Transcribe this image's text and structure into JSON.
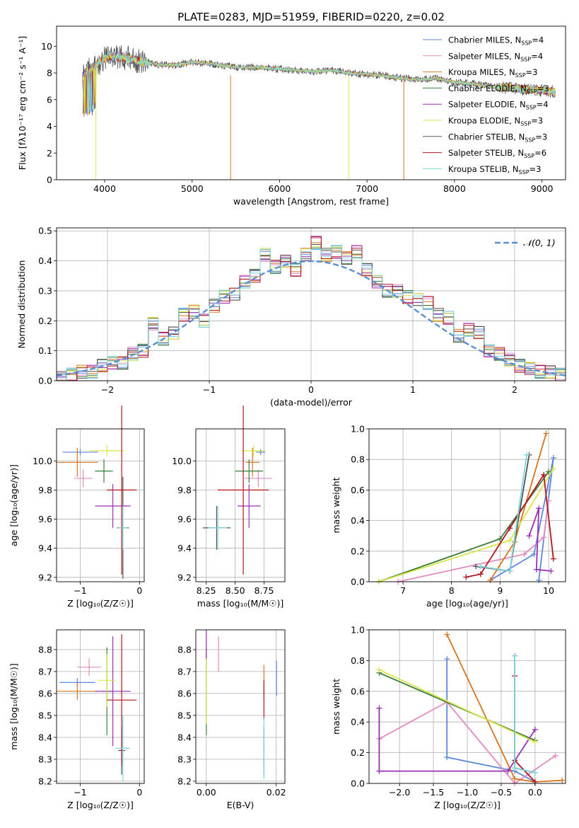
{
  "figure": {
    "title": "PLATE=0283, MJD=51959, FIBERID=0220, z=0.02"
  },
  "series": [
    {
      "name": "Chabrier MILES",
      "nssp": "4",
      "color": "#5b87dc"
    },
    {
      "name": "Salpeter MILES",
      "nssp": "4",
      "color": "#e58ac0"
    },
    {
      "name": "Kroupa MILES",
      "nssp": "3",
      "color": "#d9741c"
    },
    {
      "name": "Chabrier ELODIE",
      "nssp": "3",
      "color": "#3a7d3a"
    },
    {
      "name": "Salpeter ELODIE",
      "nssp": "4",
      "color": "#9b2fb5"
    },
    {
      "name": "Kroupa ELODIE",
      "nssp": "3",
      "color": "#d8e64a"
    },
    {
      "name": "Chabrier STELIB",
      "nssp": "3",
      "color": "#555555"
    },
    {
      "name": "Salpeter STELIB",
      "nssp": "6",
      "color": "#b0161d"
    },
    {
      "name": "Kroupa STELIB",
      "nssp": "3",
      "color": "#7fd6de"
    }
  ],
  "chart_data": [
    {
      "id": "spectrum",
      "type": "line",
      "xlabel": "wavelength [Angstrom, rest frame]",
      "ylabel": "Flux [fλ10⁻¹⁷ erg cm⁻² s⁻¹ A⁻¹]",
      "xlim": [
        3450,
        9270
      ],
      "ylim": [
        0,
        11.5
      ],
      "xticks": [
        "4000",
        "5000",
        "6000",
        "7000",
        "8000",
        "9000"
      ],
      "yticks": [
        "0",
        "2",
        "4",
        "6",
        "8",
        "10"
      ],
      "grid": false,
      "legend": "top-right",
      "x": [
        3750,
        3900,
        4050,
        4200,
        4400,
        4600,
        4800,
        5000,
        5200,
        5400,
        5600,
        5800,
        6000,
        6200,
        6400,
        6600,
        6800,
        7000,
        7200,
        7400,
        7600,
        7800,
        8000,
        8200,
        8400,
        8600,
        8800,
        9000,
        9150
      ],
      "y": [
        7.8,
        8.6,
        9.3,
        9.2,
        8.9,
        8.6,
        8.6,
        8.8,
        8.7,
        8.5,
        8.4,
        8.4,
        8.3,
        8.2,
        8.1,
        8.2,
        8.0,
        7.9,
        7.8,
        7.6,
        7.5,
        7.6,
        7.3,
        7.2,
        7.0,
        6.9,
        6.8,
        6.7,
        6.6
      ]
    },
    {
      "id": "residuals",
      "type": "line",
      "xlabel": "(data-model)/error",
      "ylabel": "Normed distribution",
      "xlim": [
        -2.5,
        2.5
      ],
      "ylim": [
        0,
        0.51
      ],
      "xticks": [
        "−2",
        "−1",
        "0",
        "1",
        "2"
      ],
      "yticks": [
        "0.0",
        "0.1",
        "0.2",
        "0.3",
        "0.4",
        "0.5"
      ],
      "grid": true,
      "legend": "top-right",
      "reference_label": "𝒩(0, 1)",
      "bins": [
        -2.5,
        -2.4,
        -2.3,
        -2.2,
        -2.1,
        -2.0,
        -1.9,
        -1.8,
        -1.7,
        -1.6,
        -1.5,
        -1.4,
        -1.3,
        -1.2,
        -1.1,
        -1.0,
        -0.9,
        -0.8,
        -0.7,
        -0.6,
        -0.5,
        -0.4,
        -0.3,
        -0.2,
        -0.1,
        0.0,
        0.1,
        0.2,
        0.3,
        0.4,
        0.5,
        0.6,
        0.7,
        0.8,
        0.9,
        1.0,
        1.1,
        1.2,
        1.3,
        1.4,
        1.5,
        1.6,
        1.7,
        1.8,
        1.9,
        2.0,
        2.1,
        2.2,
        2.3,
        2.4
      ],
      "hist_values": [
        0.01,
        0.02,
        0.03,
        0.03,
        0.05,
        0.06,
        0.06,
        0.09,
        0.1,
        0.19,
        0.14,
        0.16,
        0.22,
        0.23,
        0.2,
        0.25,
        0.28,
        0.29,
        0.33,
        0.35,
        0.42,
        0.38,
        0.4,
        0.37,
        0.42,
        0.46,
        0.42,
        0.43,
        0.41,
        0.43,
        0.37,
        0.33,
        0.3,
        0.3,
        0.28,
        0.27,
        0.26,
        0.22,
        0.21,
        0.15,
        0.17,
        0.16,
        0.1,
        0.09,
        0.07,
        0.05,
        0.04,
        0.03,
        0.03,
        0.02
      ]
    },
    {
      "id": "age_vs_Z",
      "type": "scatter",
      "xlabel": "Z [log₁₀(Z/Z☉)]",
      "ylabel": "age  [log₁₀(age/yr)]",
      "xlim": [
        -1.4,
        0.08
      ],
      "ylim": [
        9.17,
        10.22
      ],
      "xticks": [
        "−1",
        "0"
      ],
      "yticks": [
        "9.2",
        "9.4",
        "9.6",
        "9.8",
        "10.0"
      ],
      "grid": true,
      "points": [
        {
          "x": -1.0,
          "y": 10.06,
          "xerr": 0.3,
          "yerr": 0.02
        },
        {
          "x": -0.95,
          "y": 9.88,
          "xerr": 0.15,
          "yerr": 0.06
        },
        {
          "x": -1.05,
          "y": 9.99,
          "xerr": 0.35,
          "yerr": 0.1
        },
        {
          "x": -0.6,
          "y": 9.93,
          "xerr": 0.15,
          "yerr": 0.08
        },
        {
          "x": -0.45,
          "y": 9.69,
          "xerr": 0.3,
          "yerr": 0.15
        },
        {
          "x": -0.55,
          "y": 10.07,
          "xerr": 0.3,
          "yerr": 0.04
        },
        {
          "x": -0.28,
          "y": 9.54,
          "xerr": 0.1,
          "yerr": 0.35
        },
        {
          "x": -0.3,
          "y": 9.8,
          "xerr": 0.25,
          "yerr": 0.58
        },
        {
          "x": -0.28,
          "y": 9.54,
          "xerr": 0.08,
          "yerr": 0.15
        }
      ]
    },
    {
      "id": "age_vs_mass",
      "type": "scatter",
      "xlabel": "mass [log₁₀(M/M☉)]",
      "ylabel": "",
      "xlim": [
        8.16,
        8.93
      ],
      "ylim": [
        9.17,
        10.22
      ],
      "xticks": [
        "8.25",
        "8.50",
        "8.75"
      ],
      "yticks": [
        "9.2",
        "9.4",
        "9.6",
        "9.8",
        "10.0"
      ],
      "grid": true,
      "points": [
        {
          "x": 8.72,
          "y": 10.06,
          "xerr": 0.04,
          "yerr": 0.02
        },
        {
          "x": 8.7,
          "y": 9.88,
          "xerr": 0.12,
          "yerr": 0.06
        },
        {
          "x": 8.65,
          "y": 9.99,
          "xerr": 0.06,
          "yerr": 0.1
        },
        {
          "x": 8.62,
          "y": 9.93,
          "xerr": 0.12,
          "yerr": 0.08
        },
        {
          "x": 8.62,
          "y": 9.69,
          "xerr": 0.1,
          "yerr": 0.15
        },
        {
          "x": 8.66,
          "y": 10.07,
          "xerr": 0.1,
          "yerr": 0.04
        },
        {
          "x": 8.34,
          "y": 9.54,
          "xerr": 0.12,
          "yerr": 0.15
        },
        {
          "x": 8.57,
          "y": 9.8,
          "xerr": 0.22,
          "yerr": 0.58
        },
        {
          "x": 8.35,
          "y": 9.54,
          "xerr": 0.08,
          "yerr": 0.15
        }
      ]
    },
    {
      "id": "weight_vs_age",
      "type": "line",
      "xlabel": "age  [log₁₀(age/yr)]",
      "ylabel": "mass weight",
      "xlim": [
        6.3,
        10.35
      ],
      "ylim": [
        0,
        1.0
      ],
      "xticks": [
        "7",
        "8",
        "9",
        "10"
      ],
      "yticks": [
        "0.0",
        "0.2",
        "0.4",
        "0.6",
        "0.8",
        "1.0"
      ],
      "grid": true,
      "lines": [
        {
          "x": [
            8.8,
            9.7,
            10.1,
            9.8
          ],
          "y": [
            0.01,
            0.18,
            0.81,
            0.01
          ]
        },
        {
          "x": [
            6.9,
            9.5,
            9.9,
            10.0
          ],
          "y": [
            0.0,
            0.18,
            0.29,
            0.53
          ]
        },
        {
          "x": [
            8.8,
            9.3,
            9.95
          ],
          "y": [
            0.01,
            0.26,
            0.97
          ]
        },
        {
          "x": [
            6.5,
            9.0,
            10.0
          ],
          "y": [
            0.0,
            0.28,
            0.72
          ]
        },
        {
          "x": [
            9.6,
            9.8,
            9.75,
            10.05
          ],
          "y": [
            0.3,
            0.48,
            0.08,
            0.07
          ]
        },
        {
          "x": [
            6.5,
            9.2,
            10.1
          ],
          "y": [
            0.0,
            0.27,
            0.74
          ]
        },
        {
          "x": [
            8.5,
            9.2,
            9.6
          ],
          "y": [
            0.1,
            0.07,
            0.83
          ]
        },
        {
          "x": [
            8.3,
            8.6,
            9.2,
            9.9,
            10.1
          ],
          "y": [
            0.03,
            0.05,
            0.35,
            0.7,
            0.15
          ]
        },
        {
          "x": [
            8.6,
            9.2,
            9.55
          ],
          "y": [
            0.1,
            0.07,
            0.83
          ]
        }
      ]
    },
    {
      "id": "mass_vs_Z",
      "type": "scatter",
      "xlabel": "Z [log₁₀(Z/Z☉)]",
      "ylabel": "mass [log₁₀(M/M☉)]",
      "xlim": [
        -1.4,
        0.08
      ],
      "ylim": [
        8.19,
        8.89
      ],
      "xticks": [
        "−1",
        "0"
      ],
      "yticks": [
        "8.2",
        "8.3",
        "8.4",
        "8.5",
        "8.6",
        "8.7",
        "8.8"
      ],
      "grid": true,
      "points": [
        {
          "x": -1.05,
          "y": 8.65,
          "xerr": 0.3,
          "yerr": 0.02
        },
        {
          "x": -0.85,
          "y": 8.72,
          "xerr": 0.2,
          "yerr": 0.04
        },
        {
          "x": -1.05,
          "y": 8.61,
          "xerr": 0.35,
          "yerr": 0.04
        },
        {
          "x": -0.55,
          "y": 8.61,
          "xerr": 0.1,
          "yerr": 0.2
        },
        {
          "x": -0.45,
          "y": 8.61,
          "xerr": 0.3,
          "yerr": 0.25
        },
        {
          "x": -0.55,
          "y": 8.66,
          "xerr": 0.15,
          "yerr": 0.12
        },
        {
          "x": -0.3,
          "y": 8.34,
          "xerr": 0.06,
          "yerr": 0.11
        },
        {
          "x": -0.3,
          "y": 8.57,
          "xerr": 0.25,
          "yerr": 0.3
        },
        {
          "x": -0.28,
          "y": 8.35,
          "xerr": 0.12,
          "yerr": 0.15
        }
      ]
    },
    {
      "id": "mass_vs_ebv",
      "type": "scatter",
      "xlabel": "E(B-V)",
      "ylabel": "",
      "xlim": [
        -0.003,
        0.0225
      ],
      "ylim": [
        8.19,
        8.89
      ],
      "xticks": [
        "0.00",
        "0.02"
      ],
      "yticks": [
        "8.2",
        "8.3",
        "8.4",
        "8.5",
        "8.6",
        "8.7",
        "8.8"
      ],
      "grid": true,
      "points": [
        {
          "x": 0.0201,
          "y": 8.67,
          "xerr": 0,
          "yerr": 0.08
        },
        {
          "x": 0.0035,
          "y": 8.78,
          "xerr": 0,
          "yerr": 0.08
        },
        {
          "x": 0.0165,
          "y": 8.65,
          "xerr": 0,
          "yerr": 0.08
        },
        {
          "x": 0.0,
          "y": 8.61,
          "xerr": 0,
          "yerr": 0.2
        },
        {
          "x": 0.0,
          "y": 8.82,
          "xerr": 0,
          "yerr": 0.07
        },
        {
          "x": 0.0,
          "y": 8.61,
          "xerr": 0,
          "yerr": 0.15
        },
        {
          "x": 0.0165,
          "y": 8.34,
          "xerr": 0,
          "yerr": 0.11
        },
        {
          "x": 0.0165,
          "y": 8.57,
          "xerr": 0,
          "yerr": 0.09
        },
        {
          "x": 0.0165,
          "y": 8.35,
          "xerr": 0,
          "yerr": 0.14
        }
      ]
    },
    {
      "id": "weight_vs_Z",
      "type": "line",
      "xlabel": "Z [log₁₀(Z/Z☉)]",
      "ylabel": "mass weight",
      "xlim": [
        -2.45,
        0.45
      ],
      "ylim": [
        0,
        1.0
      ],
      "xticks": [
        "−2.0",
        "−1.5",
        "−1.0",
        "−0.5",
        "0.0"
      ],
      "yticks": [
        "0.0",
        "0.2",
        "0.4",
        "0.6",
        "0.8",
        "1.0"
      ],
      "grid": true,
      "lines": [
        {
          "x": [
            -1.3,
            -1.3,
            -0.3,
            0.0
          ],
          "y": [
            0.81,
            0.17,
            0.08,
            0.01
          ]
        },
        {
          "x": [
            -2.3,
            -1.3,
            -0.3,
            0.3
          ],
          "y": [
            0.29,
            0.53,
            0.0,
            0.18
          ]
        },
        {
          "x": [
            -1.3,
            -0.3,
            0.0,
            0.4
          ],
          "y": [
            0.97,
            0.03,
            0.01,
            0.02
          ]
        },
        {
          "x": [
            -2.3,
            0.0
          ],
          "y": [
            0.72,
            0.28
          ]
        },
        {
          "x": [
            -2.3,
            -2.3,
            -0.4,
            0.0
          ],
          "y": [
            0.49,
            0.08,
            0.08,
            0.35
          ]
        },
        {
          "x": [
            -2.3,
            0.0
          ],
          "y": [
            0.74,
            0.27
          ]
        },
        {
          "x": [
            -0.3,
            -0.3,
            0.0
          ],
          "y": [
            0.83,
            0.1,
            0.07
          ]
        },
        {
          "x": [
            -0.3,
            -0.3,
            0.0
          ],
          "y": [
            0.7,
            0.15,
            0.01
          ]
        },
        {
          "x": [
            -0.3,
            -0.3,
            0.0
          ],
          "y": [
            0.83,
            0.1,
            0.07
          ]
        }
      ]
    }
  ]
}
